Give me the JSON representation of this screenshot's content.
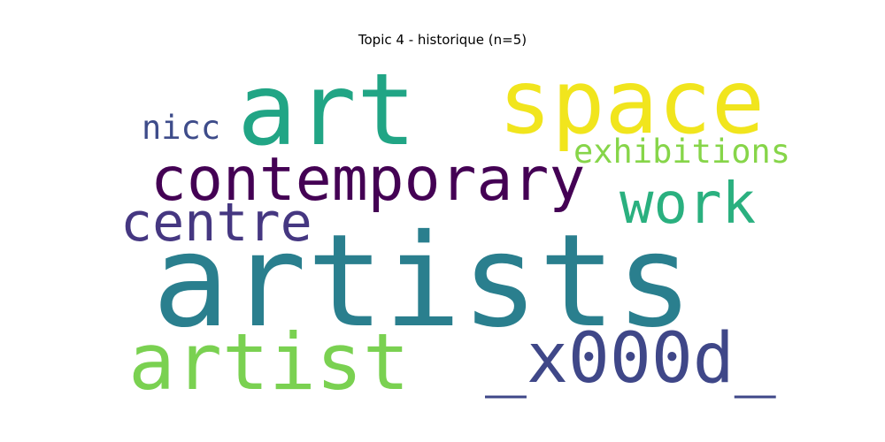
{
  "chart_data": {
    "type": "wordcloud",
    "title": "Topic 4 - historique (n=5)",
    "words": [
      {
        "text": "artists",
        "color": "#2a7f8e"
      },
      {
        "text": "art",
        "color": "#21a585"
      },
      {
        "text": "space",
        "color": "#f1e51d"
      },
      {
        "text": "contemporary",
        "color": "#440154"
      },
      {
        "text": "artist",
        "color": "#7ad151"
      },
      {
        "text": "_x000d_",
        "color": "#3f4788"
      },
      {
        "text": "work",
        "color": "#2ab07f"
      },
      {
        "text": "centre",
        "color": "#453781"
      },
      {
        "text": "exhibitions",
        "color": "#86d549"
      },
      {
        "text": "nicc",
        "color": "#3e4c8a"
      }
    ]
  }
}
